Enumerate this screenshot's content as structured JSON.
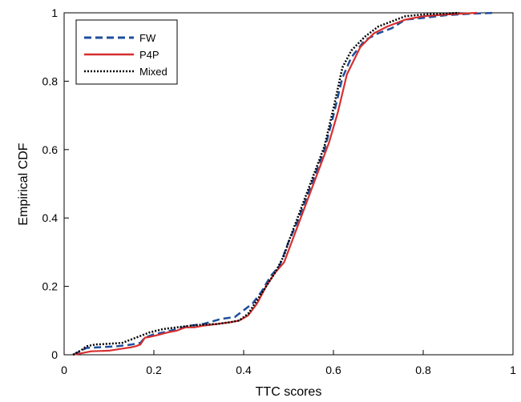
{
  "chart_data": {
    "type": "line",
    "title": "",
    "xlabel": "TTC scores",
    "ylabel": "Empirical CDF",
    "xlim": [
      0,
      1
    ],
    "ylim": [
      0,
      1
    ],
    "xticks": [
      0,
      0.2,
      0.4,
      0.6,
      0.8,
      1
    ],
    "yticks": [
      0,
      0.2,
      0.4,
      0.6,
      0.8,
      1
    ],
    "xtick_labels": [
      "0",
      "0.2",
      "0.4",
      "0.6",
      "0.8",
      "1"
    ],
    "ytick_labels": [
      "0",
      "0.2",
      "0.4",
      "0.6",
      "0.8",
      "1"
    ],
    "grid": false,
    "legend_position": "top-left",
    "series": [
      {
        "name": "FW",
        "color": "#1f4e9c",
        "style": "dashed",
        "x": [
          0.02,
          0.05,
          0.08,
          0.12,
          0.15,
          0.17,
          0.18,
          0.2,
          0.22,
          0.25,
          0.28,
          0.31,
          0.35,
          0.38,
          0.4,
          0.42,
          0.44,
          0.46,
          0.48,
          0.5,
          0.52,
          0.54,
          0.56,
          0.58,
          0.6,
          0.62,
          0.64,
          0.67,
          0.7,
          0.73,
          0.76,
          0.8,
          0.85,
          0.9,
          0.96
        ],
        "y": [
          0,
          0.02,
          0.022,
          0.025,
          0.03,
          0.035,
          0.05,
          0.06,
          0.065,
          0.075,
          0.085,
          0.09,
          0.105,
          0.11,
          0.13,
          0.15,
          0.185,
          0.23,
          0.26,
          0.33,
          0.39,
          0.46,
          0.53,
          0.6,
          0.7,
          0.81,
          0.87,
          0.92,
          0.94,
          0.955,
          0.98,
          0.985,
          0.993,
          0.997,
          1
        ]
      },
      {
        "name": "P4P",
        "color": "#d62f2f",
        "style": "solid",
        "x": [
          0.02,
          0.04,
          0.06,
          0.1,
          0.13,
          0.15,
          0.16,
          0.17,
          0.18,
          0.19,
          0.21,
          0.23,
          0.25,
          0.27,
          0.29,
          0.31,
          0.34,
          0.37,
          0.39,
          0.41,
          0.43,
          0.45,
          0.47,
          0.49,
          0.51,
          0.53,
          0.55,
          0.57,
          0.59,
          0.61,
          0.63,
          0.66,
          0.69,
          0.72,
          0.76,
          0.8,
          0.85,
          0.92
        ],
        "y": [
          0,
          0.005,
          0.01,
          0.012,
          0.018,
          0.022,
          0.025,
          0.03,
          0.05,
          0.052,
          0.058,
          0.065,
          0.07,
          0.08,
          0.08,
          0.085,
          0.09,
          0.095,
          0.1,
          0.115,
          0.15,
          0.2,
          0.24,
          0.27,
          0.34,
          0.41,
          0.48,
          0.55,
          0.62,
          0.71,
          0.82,
          0.9,
          0.94,
          0.96,
          0.98,
          0.99,
          0.995,
          1
        ]
      },
      {
        "name": "Mixed",
        "color": "#000000",
        "style": "dotted",
        "x": [
          0.02,
          0.04,
          0.05,
          0.07,
          0.1,
          0.13,
          0.15,
          0.17,
          0.19,
          0.22,
          0.25,
          0.28,
          0.31,
          0.34,
          0.37,
          0.39,
          0.41,
          0.43,
          0.45,
          0.47,
          0.49,
          0.5,
          0.52,
          0.54,
          0.56,
          0.58,
          0.6,
          0.62,
          0.64,
          0.67,
          0.7,
          0.73,
          0.76,
          0.8,
          0.85,
          0.88
        ],
        "y": [
          0,
          0.015,
          0.025,
          0.03,
          0.032,
          0.035,
          0.045,
          0.055,
          0.065,
          0.075,
          0.08,
          0.085,
          0.088,
          0.09,
          0.095,
          0.1,
          0.12,
          0.16,
          0.2,
          0.24,
          0.29,
          0.33,
          0.4,
          0.47,
          0.54,
          0.61,
          0.72,
          0.84,
          0.89,
          0.93,
          0.96,
          0.975,
          0.99,
          0.995,
          0.998,
          1
        ]
      }
    ]
  }
}
